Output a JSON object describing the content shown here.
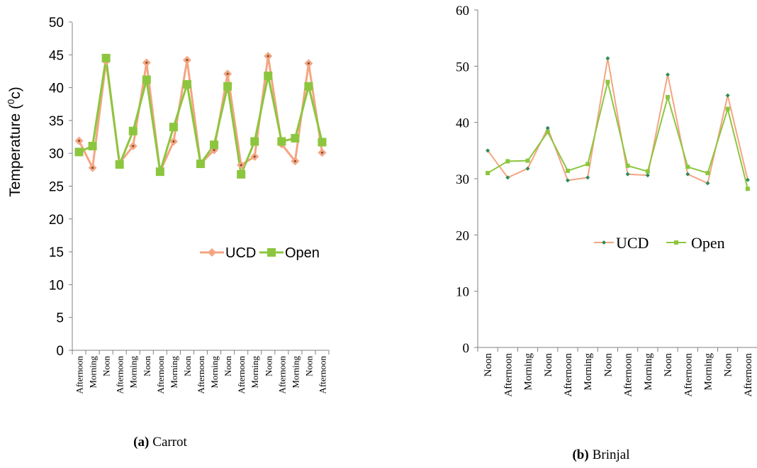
{
  "chart_data": [
    {
      "type": "line",
      "caption_label": "(a)",
      "caption_text": "Carrot",
      "ylabel": "Temperature (",
      "ylabel_sup": "0",
      "ylabel_end": "c)",
      "ylim": [
        0,
        50
      ],
      "yticks": [
        "0",
        "5",
        "10",
        "15",
        "20",
        "25",
        "30",
        "35",
        "40",
        "45",
        "50"
      ],
      "categories": [
        "Afternoon",
        "Morning",
        "Noon",
        "Afternoon",
        "Morning",
        "Noon",
        "Afternoon",
        "Morning",
        "Noon",
        "Afternoon",
        "Morning",
        "Noon",
        "Afternoon",
        "Morning",
        "Noon",
        "Afternoon",
        "Morning",
        "Noon",
        "Afternoon"
      ],
      "series": [
        {
          "name": "UCD",
          "color": "#f4a582",
          "marker": "diamond",
          "values": [
            31.9,
            27.8,
            44.0,
            28.5,
            31.1,
            43.8,
            27.2,
            31.8,
            44.2,
            28.4,
            30.5,
            42.1,
            28.2,
            29.5,
            44.8,
            31.4,
            28.8,
            43.7,
            30.1
          ]
        },
        {
          "name": "Open",
          "color": "#8cc63f",
          "marker": "square",
          "values": [
            30.2,
            31.1,
            44.5,
            28.3,
            33.4,
            41.2,
            27.2,
            34.0,
            40.5,
            28.4,
            31.3,
            40.2,
            26.8,
            31.8,
            41.8,
            31.8,
            32.3,
            40.2,
            31.7
          ]
        }
      ],
      "legend": "right-middle",
      "grid": false
    },
    {
      "type": "line",
      "caption_label": "(b)",
      "caption_text": "Brinjal",
      "ylim": [
        0,
        60
      ],
      "yticks": [
        "0",
        "10",
        "20",
        "30",
        "40",
        "50",
        "60"
      ],
      "categories": [
        "Noon",
        "Afternoon",
        "Morning",
        "Noon",
        "Afternoon",
        "Morning",
        "Noon",
        "Afternoon",
        "Morning",
        "Noon",
        "Afternoon",
        "Morning",
        "Noon",
        "Afternoon"
      ],
      "series": [
        {
          "name": "UCD",
          "color": "#f4a582",
          "marker_color": "#2e8b57",
          "marker": "diamond",
          "values": [
            35.0,
            30.2,
            31.8,
            39.0,
            29.7,
            30.2,
            51.4,
            30.8,
            30.6,
            48.5,
            30.8,
            29.2,
            44.8,
            29.8
          ]
        },
        {
          "name": "Open",
          "color": "#8cc63f",
          "marker": "square",
          "values": [
            31.0,
            33.1,
            33.2,
            38.3,
            31.4,
            32.6,
            47.2,
            32.3,
            31.3,
            44.5,
            32.1,
            31.0,
            42.4,
            28.2
          ]
        }
      ],
      "legend": "right-middle",
      "grid": false
    }
  ]
}
